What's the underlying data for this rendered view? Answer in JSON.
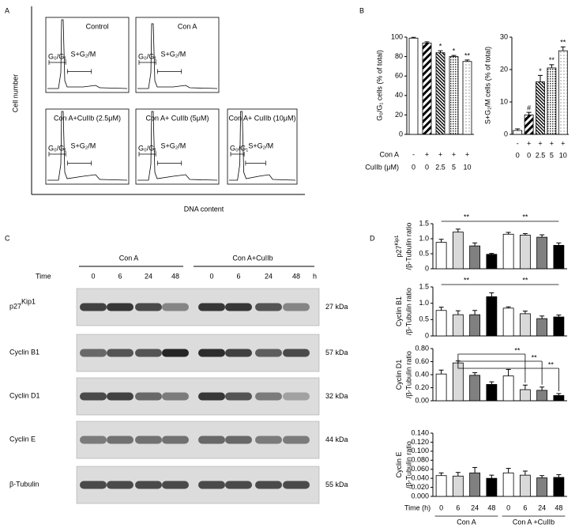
{
  "panel_a": {
    "letter": "A",
    "y_label": "Cell number",
    "x_label": "DNA content",
    "plots": [
      {
        "title": "Control"
      },
      {
        "title": "Con A"
      },
      {
        "title": "Con A+CuIIb (2.5μM)"
      },
      {
        "title": "Con A+ CuIIb (5μM)"
      },
      {
        "title": "Con A+ CuIIb (10μM)"
      }
    ],
    "gate_g1": "G₀/G₁",
    "gate_s": "S+G₂/M"
  },
  "panel_b": {
    "letter": "B",
    "row_con_a": "Con A",
    "row_cuiib": "CuIIb (μM)"
  },
  "panel_c": {
    "letter": "C",
    "groups": [
      "Con A",
      "Con A+CuIIb"
    ],
    "time_label": "Time",
    "times": [
      "0",
      "6",
      "24",
      "48",
      "0",
      "6",
      "24",
      "48"
    ],
    "time_unit": "h",
    "blots": [
      {
        "name": "p27",
        "sup": "Kip1",
        "kda": "27 kDa"
      },
      {
        "name": "Cyclin B1",
        "kda": "57 kDa"
      },
      {
        "name": "Cyclin D1",
        "kda": "32 kDa"
      },
      {
        "name": "Cyclin E",
        "kda": "44 kDa"
      },
      {
        "name": "β-Tubulin",
        "kda": "55 kDa"
      }
    ]
  },
  "panel_d": {
    "letter": "D",
    "x_label": "Time (h)",
    "categories": [
      "0",
      "6",
      "24",
      "48",
      "0",
      "6",
      "24",
      "48"
    ],
    "groups": [
      "Con A",
      "Con A +CuIIb"
    ]
  },
  "chart_data": [
    {
      "type": "bar",
      "y_label": "G₀/G₁ cells (% of total)",
      "con_a": [
        "-",
        "+",
        "+",
        "+",
        "+"
      ],
      "categories": [
        "0",
        "0",
        "2.5",
        "5",
        "10"
      ],
      "values": [
        99,
        94,
        84,
        80,
        75
      ],
      "errors": [
        0.8,
        1.2,
        2,
        1.2,
        1.5
      ],
      "significance": [
        null,
        null,
        "*",
        "*",
        "**"
      ],
      "ylim": [
        0,
        100
      ],
      "yticks": [
        0,
        20,
        40,
        60,
        80,
        100
      ]
    },
    {
      "type": "bar",
      "y_label": "S+G₂/M cells (% of total)",
      "con_a": [
        "-",
        "+",
        "+",
        "+",
        "+"
      ],
      "categories": [
        "0",
        "0",
        "2.5",
        "5",
        "10"
      ],
      "values": [
        1.2,
        6,
        16.2,
        20.5,
        25.8
      ],
      "errors": [
        0.5,
        0.8,
        2,
        1,
        1.2
      ],
      "significance": [
        null,
        "#",
        "*",
        "**",
        "**"
      ],
      "ylim": [
        0,
        30
      ],
      "yticks": [
        0,
        10,
        20,
        30
      ]
    },
    {
      "type": "bar",
      "y_label": {
        "line1": "p27",
        "sup": "Kip1",
        "line2": "/β-Tubulin ratio"
      },
      "values": [
        0.88,
        1.22,
        0.76,
        0.48,
        1.15,
        1.12,
        1.05,
        0.78
      ],
      "errors": [
        0.1,
        0.1,
        0.1,
        0.03,
        0.06,
        0.05,
        0.08,
        0.08
      ],
      "colors": [
        "#ffffff",
        "#d9d9d9",
        "#808080",
        "#000000",
        "#ffffff",
        "#d9d9d9",
        "#808080",
        "#000000"
      ],
      "brackets": [
        "**",
        "**"
      ],
      "ylim": [
        0,
        1.5
      ],
      "yticks": [
        0,
        0.5,
        {
          "value": 1,
          "label": "1.0"
        },
        1.5
      ]
    },
    {
      "type": "bar",
      "y_label": {
        "line1": "Cyclin B1",
        "line2": "/β-Tubulin ratio"
      },
      "values": [
        0.78,
        0.65,
        0.65,
        1.2,
        0.85,
        0.68,
        0.53,
        0.58
      ],
      "errors": [
        0.1,
        0.12,
        0.13,
        0.12,
        0.04,
        0.08,
        0.08,
        0.06
      ],
      "colors": [
        "#ffffff",
        "#d9d9d9",
        "#808080",
        "#000000",
        "#ffffff",
        "#d9d9d9",
        "#808080",
        "#000000"
      ],
      "brackets": [
        "**",
        "**"
      ],
      "ylim": [
        0,
        1.5
      ],
      "yticks": [
        0,
        0.5,
        {
          "value": 1,
          "label": "1.0"
        },
        1.5
      ]
    },
    {
      "type": "bar",
      "y_label": {
        "line1": "Cyclin D1",
        "line2": "/β-Tubulin ratio"
      },
      "values": [
        0.41,
        0.58,
        0.39,
        0.25,
        0.38,
        0.17,
        0.16,
        0.08
      ],
      "errors": [
        0.06,
        0.03,
        0.04,
        0.04,
        0.1,
        0.07,
        0.05,
        0.03
      ],
      "colors": [
        "#ffffff",
        "#d9d9d9",
        "#808080",
        "#000000",
        "#ffffff",
        "#d9d9d9",
        "#808080",
        "#000000"
      ],
      "brackets": [
        "**",
        "**",
        "**"
      ],
      "ylim": [
        0,
        0.8
      ],
      "yticks": [
        {
          "value": 0,
          "label": "0.00"
        },
        {
          "value": 0.2,
          "label": "0.20"
        },
        {
          "value": 0.4,
          "label": "0.40"
        },
        {
          "value": 0.6,
          "label": "0.60"
        },
        {
          "value": 0.8,
          "label": "0.80"
        }
      ]
    },
    {
      "type": "bar",
      "y_label": {
        "line1": "Cyclin E",
        "line2": "/β-Tubulin ratio"
      },
      "values": [
        0.046,
        0.045,
        0.052,
        0.04,
        0.052,
        0.047,
        0.041,
        0.042
      ],
      "errors": [
        0.006,
        0.008,
        0.012,
        0.007,
        0.01,
        0.009,
        0.005,
        0.006
      ],
      "colors": [
        "#ffffff",
        "#d9d9d9",
        "#808080",
        "#000000",
        "#ffffff",
        "#d9d9d9",
        "#808080",
        "#000000"
      ],
      "ylim": [
        0,
        0.14
      ],
      "yticks": [
        {
          "value": 0,
          "label": "0.000"
        },
        {
          "value": 0.02,
          "label": "0.020"
        },
        {
          "value": 0.04,
          "label": "0.040"
        },
        {
          "value": 0.06,
          "label": "0.060"
        },
        {
          "value": 0.08,
          "label": "0.080"
        },
        {
          "value": 0.1,
          "label": "0.100"
        },
        {
          "value": 0.12,
          "label": "0.120"
        },
        {
          "value": 0.14,
          "label": "0.140"
        }
      ]
    }
  ]
}
